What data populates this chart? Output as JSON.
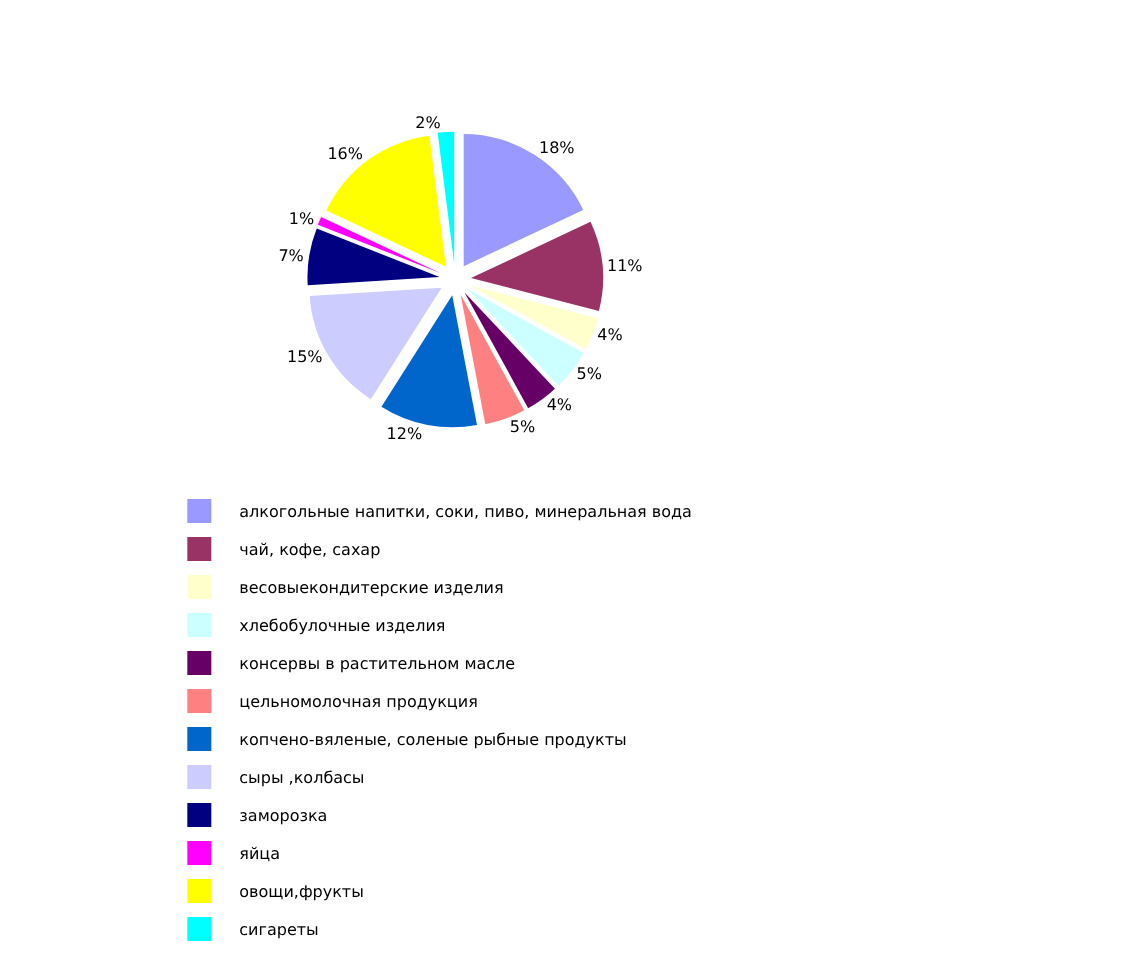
{
  "chart_data": {
    "type": "pie",
    "categories": [
      "алкогольные напитки, соки, пиво, минеральная вода",
      "чай, кофе, сахар",
      "весовыекондитерские изделия",
      "хлебобулочные изделия",
      "консервы в растительном масле",
      "цельномолочная продукция",
      "копчено-вяленые, соленые рыбные продукты",
      "сыры ,колбасы",
      "заморозка",
      "яйца",
      "овощи,фрукты",
      "сигареты"
    ],
    "values": [
      18,
      11,
      4,
      5,
      4,
      5,
      12,
      15,
      7,
      1,
      16,
      2
    ],
    "value_labels": [
      "18%",
      "11%",
      "4%",
      "5%",
      "4%",
      "5%",
      "12%",
      "15%",
      "7%",
      "1%",
      "16%",
      "2%"
    ],
    "colors": [
      "#9999ff",
      "#993366",
      "#ffffcc",
      "#ccffff",
      "#660066",
      "#ff8080",
      "#0066cc",
      "#ccccff",
      "#000080",
      "#ff00ff",
      "#ffff00",
      "#00ffff"
    ],
    "legend": "bottom"
  }
}
